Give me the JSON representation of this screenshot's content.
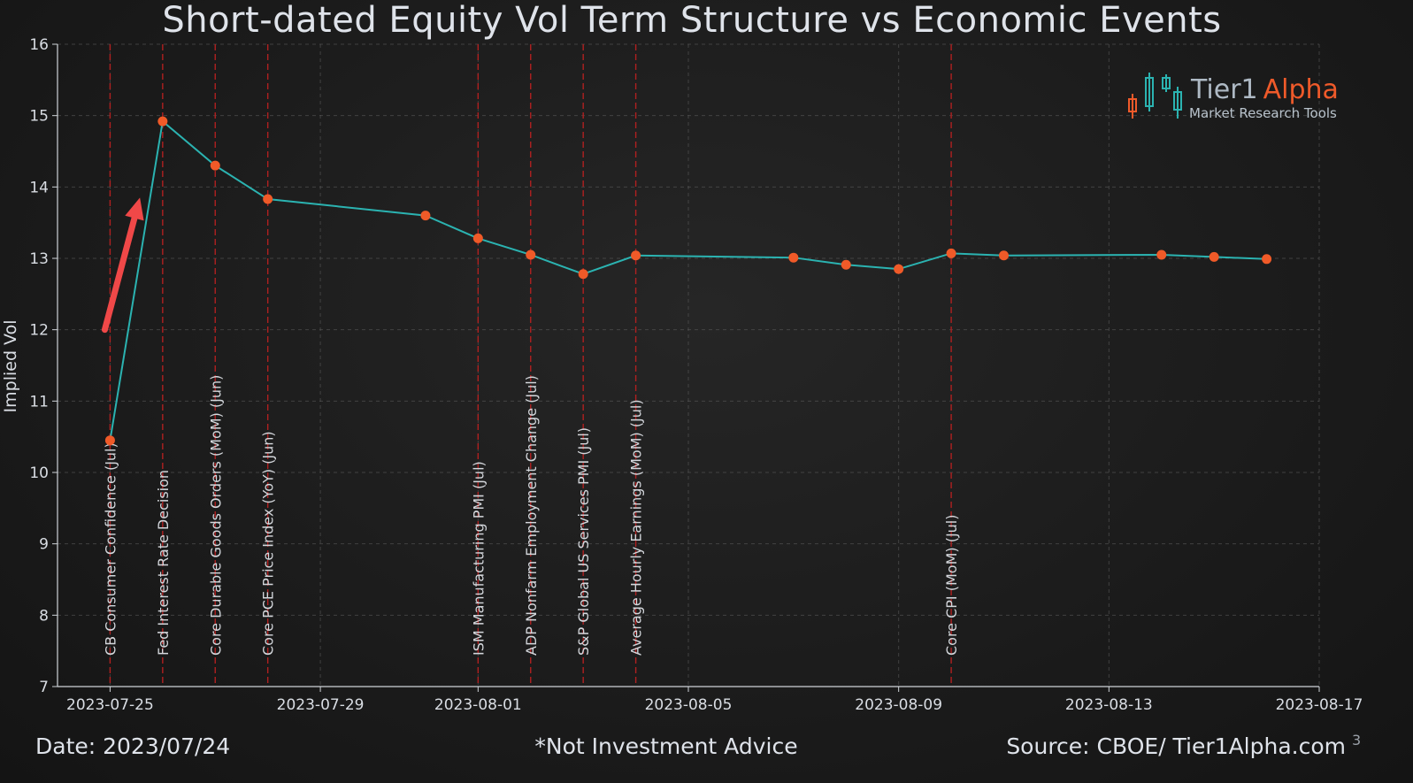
{
  "chart_data": {
    "type": "line",
    "title": "Short-dated Equity Vol Term Structure vs Economic Events",
    "ylabel": "Implied Vol",
    "xlabel": "",
    "ylim": [
      7,
      16
    ],
    "yticks": [
      "7",
      "8",
      "9",
      "10",
      "11",
      "12",
      "13",
      "14",
      "15",
      "16"
    ],
    "xlim": [
      "2023-07-24",
      "2023-08-17"
    ],
    "xticks": [
      "2023-07-25",
      "2023-07-29",
      "2023-08-01",
      "2023-08-05",
      "2023-08-09",
      "2023-08-13",
      "2023-08-17"
    ],
    "grid": true,
    "series": [
      {
        "x": [
          "2023-07-25",
          "2023-07-26",
          "2023-07-27",
          "2023-07-28",
          "2023-07-31",
          "2023-08-01",
          "2023-08-02",
          "2023-08-03",
          "2023-08-04",
          "2023-08-07",
          "2023-08-08",
          "2023-08-09",
          "2023-08-10",
          "2023-08-11",
          "2023-08-14",
          "2023-08-15",
          "2023-08-16"
        ],
        "values": [
          10.45,
          14.92,
          14.3,
          13.83,
          13.6,
          13.28,
          13.05,
          12.78,
          13.04,
          13.01,
          12.91,
          12.85,
          13.07,
          13.04,
          13.05,
          13.02,
          12.99
        ],
        "line_color": "#2bb3b1",
        "marker_color": "#f05a28"
      }
    ],
    "events": [
      {
        "date": "2023-07-25",
        "label": "CB Consumer Confidence  (Jul)"
      },
      {
        "date": "2023-07-26",
        "label": "Fed Interest Rate Decision"
      },
      {
        "date": "2023-07-27",
        "label": "Core Durable Goods Orders (MoM)  (Jun)"
      },
      {
        "date": "2023-07-28",
        "label": "Core PCE Price Index (YoY)  (Jun)"
      },
      {
        "date": "2023-08-01",
        "label": "ISM Manufacturing PMI  (Jul)"
      },
      {
        "date": "2023-08-02",
        "label": "ADP Nonfarm Employment Change  (Jul)"
      },
      {
        "date": "2023-08-03",
        "label": "S&P Global US Services PMI  (Jul)"
      },
      {
        "date": "2023-08-04",
        "label": "Average Hourly Earnings (MoM)  (Jul)"
      },
      {
        "date": "2023-08-10",
        "label": "Core CPI (MoM)  (Jul)"
      }
    ],
    "event_line_color": "#b02020",
    "annotation": {
      "type": "arrow",
      "color": "#f04848",
      "from": [
        "2023-07-25",
        12.0
      ],
      "to": [
        "2023-07-25.5",
        13.9
      ]
    }
  },
  "logo": {
    "name_part1": "Tier1",
    "name_part2": "Alpha",
    "tagline": "Market  Research Tools",
    "color1": "#aeb9c4",
    "color2": "#ef5a2a",
    "candle_color": "#2bb3b1"
  },
  "footer": {
    "date": "Date: 2023/07/24",
    "disclaimer": "*Not Investment Advice",
    "source": "Source: CBOE/ Tier1Alpha.com",
    "page": "3"
  }
}
